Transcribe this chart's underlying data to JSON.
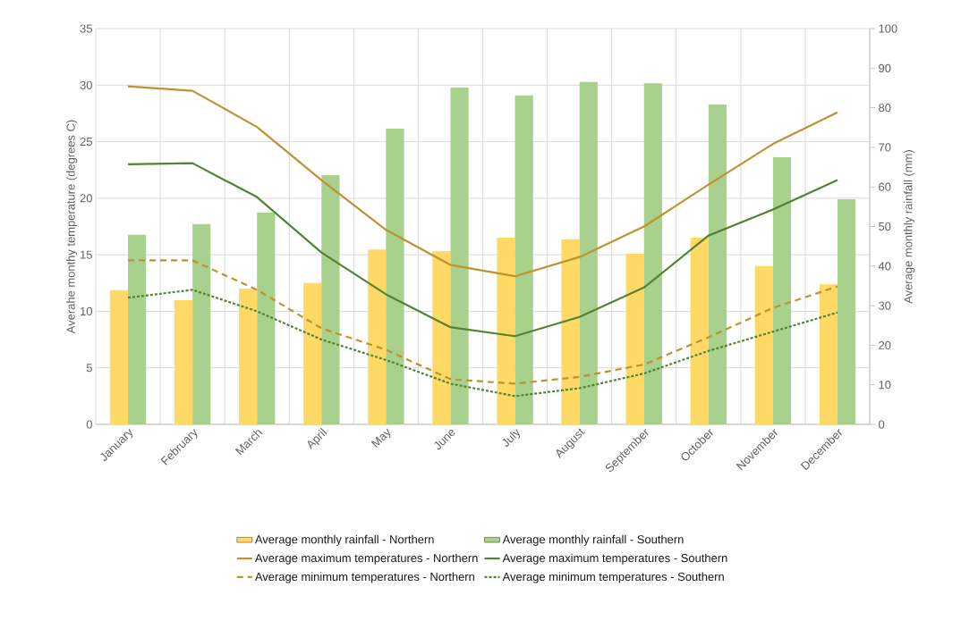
{
  "chart_data": {
    "type": "bar",
    "categories": [
      "January",
      "February",
      "March",
      "April",
      "May",
      "June",
      "July",
      "August",
      "September",
      "October",
      "November",
      "December"
    ],
    "ylabel": "Averahe monthy temperature (degrees C)",
    "y2label": "Average monthly rainfall (mm)",
    "ylim": [
      0,
      35
    ],
    "yticks": [
      0,
      5,
      10,
      15,
      20,
      25,
      30,
      35
    ],
    "y2lim": [
      0,
      100
    ],
    "y2ticks": [
      0,
      10,
      20,
      30,
      40,
      50,
      60,
      70,
      80,
      90,
      100
    ],
    "grid": true,
    "legend": "bottom",
    "series": [
      {
        "name": "Average monthly rainfall - Northern",
        "axis": "y2",
        "color": "#ffd966",
        "values": [
          33.9,
          31.4,
          34.3,
          35.7,
          44.2,
          43.8,
          47.2,
          46.7,
          43.1,
          47.2,
          40,
          35.4
        ]
      },
      {
        "name": "Average monthly rainfall - Southern",
        "axis": "y2",
        "color": "#a9d18e",
        "values": [
          47.9,
          50.6,
          53.5,
          63,
          74.7,
          85.1,
          83.1,
          86.5,
          86.2,
          80.8,
          67.5,
          56.9
        ]
      },
      {
        "name": "Average maximum temperatures - Northern",
        "type": "line",
        "axis": "y",
        "line_style": "solid",
        "color": "#bf9230",
        "values": [
          29.9,
          29.5,
          26.3,
          21.6,
          17.2,
          14.1,
          13.1,
          14.8,
          17.5,
          21.2,
          24.8,
          27.6
        ]
      },
      {
        "name": "Average maximum temperatures - Southern",
        "type": "line",
        "axis": "y",
        "line_style": "solid",
        "color": "#548235",
        "values": [
          23.0,
          23.1,
          20.1,
          15.2,
          11.5,
          8.6,
          7.8,
          9.5,
          12.1,
          16.7,
          19.0,
          21.6
        ]
      },
      {
        "name": "Average minimum temperatures - Northern",
        "type": "line",
        "axis": "y",
        "line_style": "dashed",
        "color": "#bf9230",
        "values": [
          14.5,
          14.5,
          11.9,
          8.5,
          6.6,
          4.0,
          3.6,
          4.2,
          5.3,
          7.7,
          10.3,
          12.2
        ]
      },
      {
        "name": "Average minimum temperatures - Southern",
        "type": "line",
        "axis": "y",
        "line_style": "dotted",
        "color": "#548235",
        "values": [
          11.2,
          11.9,
          10.0,
          7.5,
          5.7,
          3.6,
          2.5,
          3.2,
          4.5,
          6.5,
          8.2,
          9.9
        ]
      }
    ]
  }
}
